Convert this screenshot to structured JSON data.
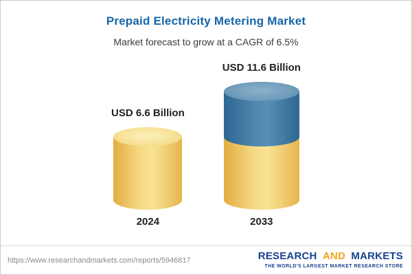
{
  "header": {
    "title": "Prepaid Electricity Metering Market",
    "subtitle": "Market forecast to grow at a CAGR of 6.5%"
  },
  "chart_data": {
    "type": "bar",
    "categories": [
      "2024",
      "2033"
    ],
    "values": [
      6.6,
      11.6
    ],
    "unit": "USD Billion",
    "value_labels": [
      "USD 6.6 Billion",
      "USD 11.6 Billion"
    ],
    "title": "Prepaid Electricity Metering Market",
    "subtitle": "Market forecast to grow at a CAGR of 6.5%",
    "cagr_percent": 6.5,
    "bar_style": "3d-cylinder",
    "segments_2033": {
      "base": 6.6,
      "growth": 5.0
    },
    "colors": {
      "base": "#f3d278",
      "growth": "#3d7da6"
    },
    "grid": false,
    "legend": "none"
  },
  "bars": [
    {
      "value_label": "USD 6.6 Billion",
      "year": "2024"
    },
    {
      "value_label": "USD 11.6 Billion",
      "year": "2033"
    }
  ],
  "footer": {
    "url": "https://www.researchandmarkets.com/reports/5946817",
    "logo": {
      "word1": "RESEARCH",
      "word2": "AND",
      "word3": "MARKETS",
      "tagline": "THE WORLD'S LARGEST MARKET RESEARCH STORE"
    }
  }
}
